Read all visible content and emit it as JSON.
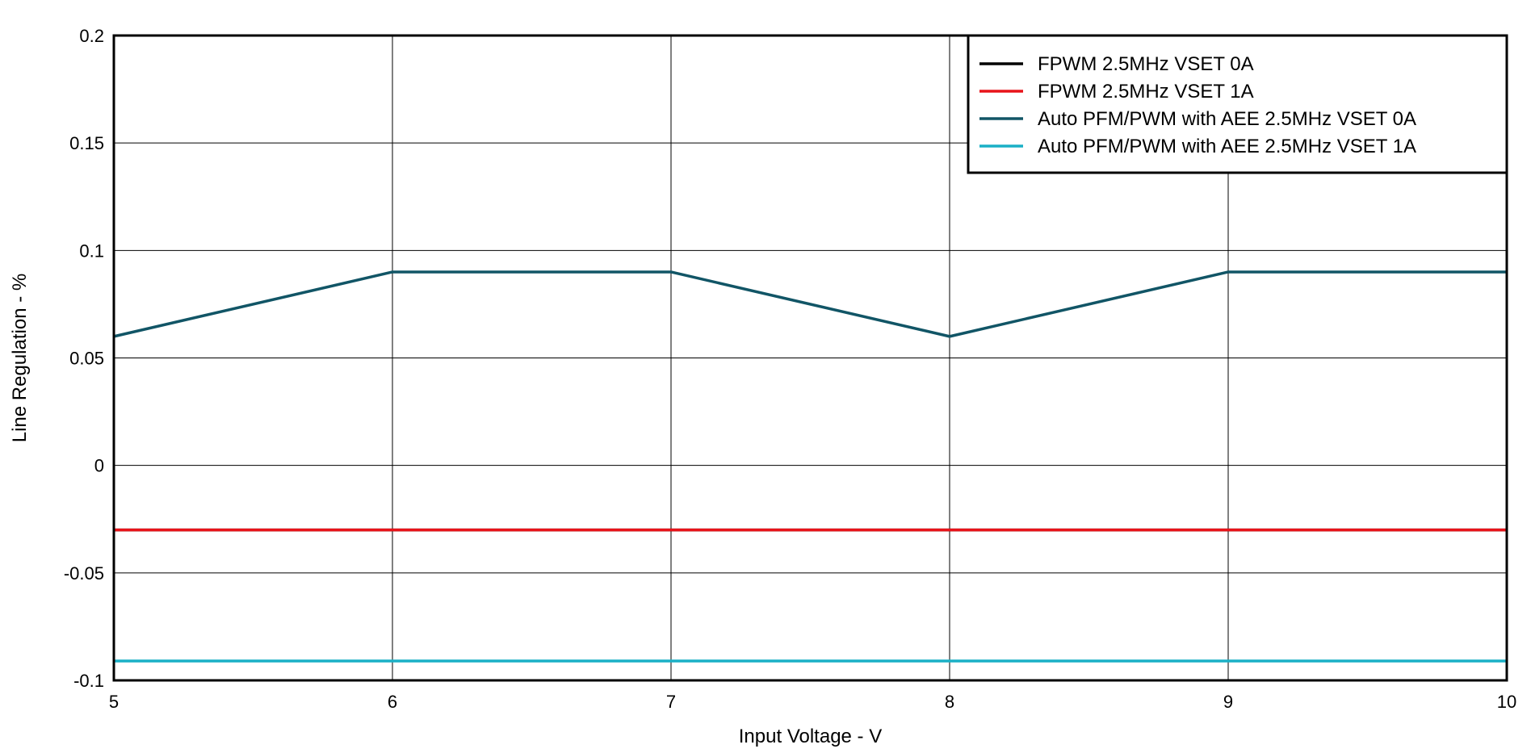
{
  "chart_data": {
    "type": "line",
    "title": "",
    "xlabel": "Input Voltage - V",
    "ylabel": "Line Regulation - %",
    "xlim": [
      5,
      10
    ],
    "ylim": [
      -0.1,
      0.2
    ],
    "x_ticks": [
      5,
      6,
      7,
      8,
      9,
      10
    ],
    "x_tick_labels": [
      "5",
      "6",
      "7",
      "8",
      "9",
      "10"
    ],
    "y_ticks": [
      -0.1,
      -0.05,
      0,
      0.05,
      0.1,
      0.15,
      0.2
    ],
    "y_tick_labels": [
      "-0.1",
      "-0.05",
      "0",
      "0.05",
      "0.1",
      "0.15",
      "0.2"
    ],
    "grid": true,
    "legend_position": "top-right",
    "x": [
      5,
      6,
      7,
      8,
      9,
      10
    ],
    "series": [
      {
        "name": "FPWM 2.5MHz VSET 0A",
        "color": "#000000",
        "values": [
          -0.03,
          -0.03,
          -0.03,
          -0.03,
          -0.03,
          -0.03
        ]
      },
      {
        "name": "FPWM 2.5MHz VSET 1A",
        "color": "#e8141a",
        "values": [
          -0.03,
          -0.03,
          -0.03,
          -0.03,
          -0.03,
          -0.03
        ]
      },
      {
        "name": "Auto PFM/PWM with AEE 2.5MHz VSET 0A",
        "color": "#115566",
        "values": [
          0.06,
          0.09,
          0.09,
          0.06,
          0.09,
          0.09
        ]
      },
      {
        "name": "Auto PFM/PWM with AEE 2.5MHz VSET 1A",
        "color": "#1ab0c6",
        "values": [
          -0.091,
          -0.091,
          -0.091,
          -0.091,
          -0.091,
          -0.091
        ]
      }
    ]
  }
}
